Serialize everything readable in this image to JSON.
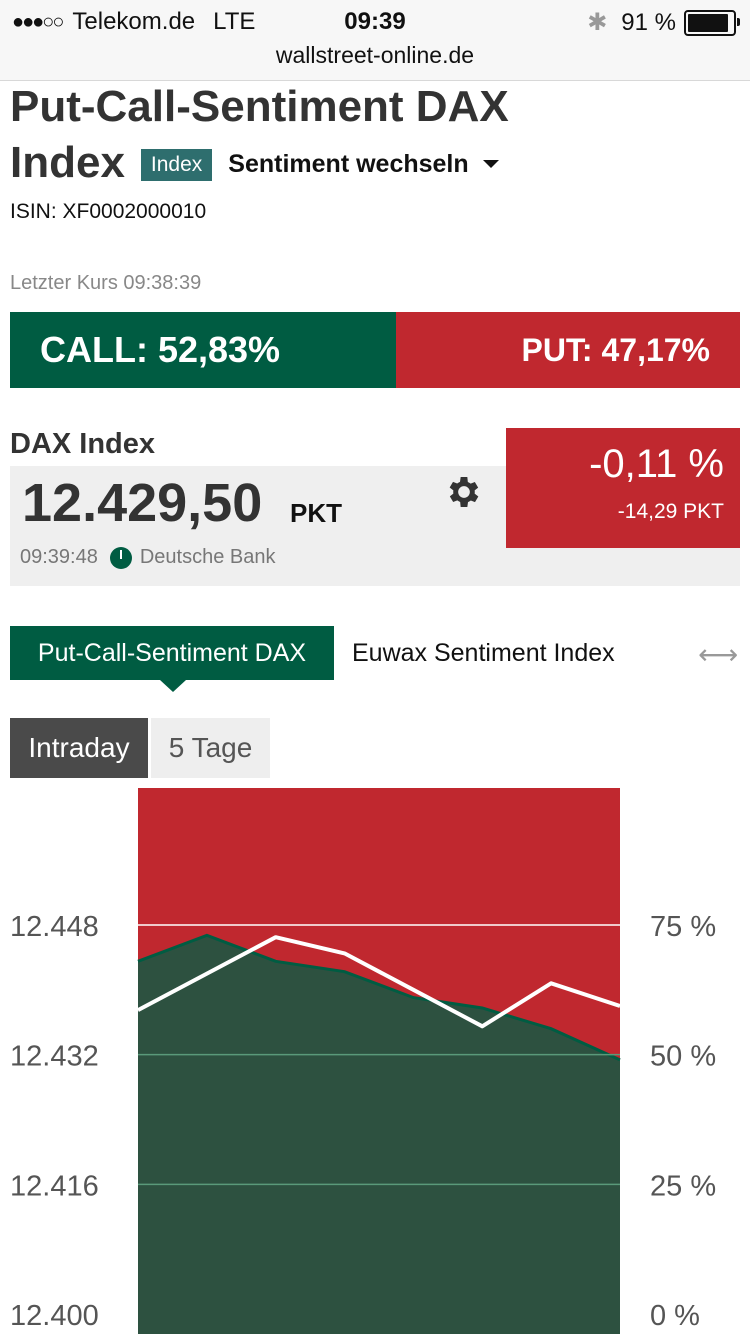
{
  "status_bar": {
    "carrier": "Telekom.de",
    "network": "LTE",
    "time": "09:39",
    "battery": "91 %",
    "battery_level": 0.91,
    "url": "wallstreet-online.de"
  },
  "header": {
    "title_line1": "Put-Call-Sentiment DAX",
    "title_line2": "Index",
    "badge": "Index",
    "switch_label": "Sentiment wechseln",
    "isin": "ISIN: XF0002000010",
    "last_update": "Letzter Kurs 09:38:39"
  },
  "sentiment": {
    "call_label": "CALL: 52,83%",
    "put_label": "PUT: 47,17%",
    "call_fraction": 0.5283
  },
  "quote": {
    "name": "DAX Index",
    "price": "12.429,50",
    "unit": "PKT",
    "time": "09:39:48",
    "source": "Deutsche Bank",
    "change_pct": "-0,11 %",
    "change_pts": "-14,29 PKT"
  },
  "tabs": [
    {
      "label": "Put-Call-Sentiment DAX"
    },
    {
      "label": "Euwax Sentiment Index"
    }
  ],
  "range_tabs": [
    {
      "label": "Intraday"
    },
    {
      "label": "5 Tage"
    }
  ],
  "colors": {
    "call_green": "#005c42",
    "put_red": "#c0282f",
    "badge_teal": "#2e6e6e",
    "area_green": "#2d5140"
  },
  "chart_data": {
    "type": "area",
    "left_axis_ticks": [
      "12.448",
      "12.432",
      "12.416",
      "12.400"
    ],
    "right_axis_ticks": [
      "75 %",
      "50 %",
      "25 %",
      "0 %"
    ],
    "left_ylim": [
      12400,
      12464
    ],
    "right_ylim": [
      0,
      100
    ],
    "series": [
      {
        "values": [
          68,
          73,
          68,
          66,
          61,
          59,
          55,
          49
        ]
      },
      {
        "values": [
          12437.5,
          12442,
          12446.5,
          12444.5,
          12440,
          12435.5,
          12440.8,
          12438
        ]
      }
    ]
  }
}
